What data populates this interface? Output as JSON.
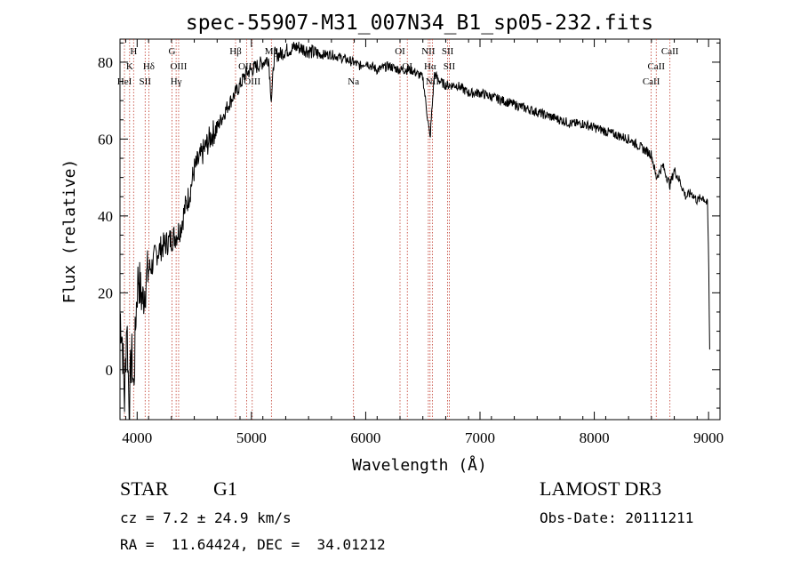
{
  "chart_data": {
    "type": "line",
    "title": "spec-55907-M31_007N34_B1_sp05-232.fits",
    "xlabel": "Wavelength (Å)",
    "ylabel": "Flux (relative)",
    "xlim": [
      3850,
      9100
    ],
    "ylim": [
      -13,
      86
    ],
    "xticks": [
      4000,
      5000,
      6000,
      7000,
      8000,
      9000
    ],
    "yticks": [
      0,
      20,
      40,
      60,
      80
    ],
    "series": [
      {
        "name": "flux",
        "x": [
          3850,
          3870,
          3890,
          3910,
          3930,
          3950,
          3970,
          3990,
          4010,
          4030,
          4050,
          4070,
          4100,
          4130,
          4160,
          4190,
          4220,
          4260,
          4300,
          4340,
          4380,
          4420,
          4460,
          4500,
          4550,
          4600,
          4650,
          4700,
          4750,
          4800,
          4860,
          4900,
          4950,
          5000,
          5050,
          5100,
          5150,
          5175,
          5200,
          5250,
          5300,
          5400,
          5500,
          5600,
          5700,
          5800,
          5890,
          5950,
          6000,
          6100,
          6200,
          6300,
          6400,
          6500,
          6563,
          6600,
          6650,
          6700,
          6800,
          6900,
          7000,
          7100,
          7200,
          7300,
          7400,
          7500,
          7600,
          7700,
          7800,
          7900,
          8000,
          8100,
          8200,
          8300,
          8400,
          8500,
          8542,
          8600,
          8662,
          8700,
          8750,
          8800,
          8850,
          8900,
          8950,
          8990,
          9000,
          9010
        ],
        "y": [
          15,
          8,
          -8,
          14,
          -11,
          5,
          -5,
          15,
          25,
          20,
          18,
          22,
          26,
          27,
          30,
          31,
          32,
          33,
          34,
          35,
          37,
          42,
          46,
          52,
          55,
          58,
          61,
          63,
          66,
          69,
          72,
          74,
          77,
          78,
          79,
          80,
          81,
          70,
          82,
          82,
          83,
          84,
          83,
          82,
          82,
          81,
          80,
          79,
          80,
          78,
          79,
          78,
          78,
          76,
          60,
          77,
          75,
          74,
          74,
          72,
          72,
          71,
          70,
          69,
          68,
          67,
          66,
          65,
          64,
          64,
          63,
          62,
          61,
          60,
          58,
          56,
          50,
          53,
          48,
          52,
          49,
          45,
          46,
          44,
          45,
          43,
          30,
          5
        ]
      }
    ],
    "lines": [
      {
        "name": "K",
        "x": 3934,
        "row": 2
      },
      {
        "name": "H",
        "x": 3969,
        "row": 1
      },
      {
        "name": "HeI",
        "x": 3889,
        "row": 3
      },
      {
        "name": "SII",
        "x": 4070,
        "row": 3
      },
      {
        "name": "Hδ",
        "x": 4102,
        "row": 2
      },
      {
        "name": "G",
        "x": 4305,
        "row": 1
      },
      {
        "name": "OIII",
        "x": 4363,
        "row": 2
      },
      {
        "name": "Hγ",
        "x": 4341,
        "row": 3
      },
      {
        "name": "Hβ",
        "x": 4861,
        "row": 1
      },
      {
        "name": "OIII",
        "x": 4959,
        "row": 2
      },
      {
        "name": "OIII",
        "x": 5007,
        "row": 3
      },
      {
        "name": "Mg",
        "x": 5175,
        "row": 1
      },
      {
        "name": "Na",
        "x": 5893,
        "row": 3
      },
      {
        "name": "OI",
        "x": 6300,
        "row": 1
      },
      {
        "name": "OI",
        "x": 6364,
        "row": 2
      },
      {
        "name": "NII",
        "x": 6548,
        "row": 1
      },
      {
        "name": "Hα",
        "x": 6563,
        "row": 2
      },
      {
        "name": "NII",
        "x": 6583,
        "row": 3
      },
      {
        "name": "SII",
        "x": 6717,
        "row": 1
      },
      {
        "name": "SII",
        "x": 6731,
        "row": 2
      },
      {
        "name": "CaII",
        "x": 8498,
        "row": 3
      },
      {
        "name": "CaII",
        "x": 8542,
        "row": 2
      },
      {
        "name": "CaII",
        "x": 8662,
        "row": 1
      }
    ]
  },
  "info": {
    "class_label": "STAR",
    "subclass": "G1",
    "survey": "LAMOST DR3",
    "cz": "cz = 7.2 ± 24.9 km/s",
    "obs_date": "Obs-Date: 20111211",
    "coords": "RA =  11.64424, DEC =  34.01212"
  }
}
